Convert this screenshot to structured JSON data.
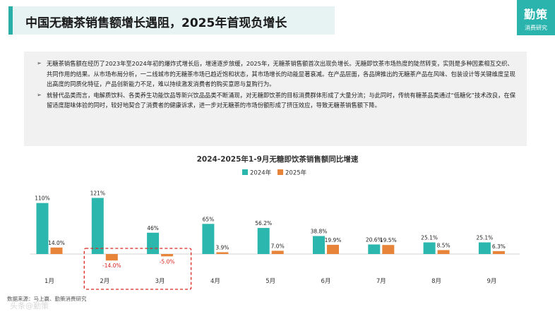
{
  "header": {
    "title": "中国无糖茶销售额增长遇阻，2025年首现负增长"
  },
  "logo": {
    "main": "勤策",
    "sub": "消费研究"
  },
  "paragraphs": [
    "无糖茶销售额在经历了2023年至2024年初的爆炸式增长后，增速逐步放缓，2025年，无糖茶销售额首次出现负增长。无糖即饮茶市场热度的陡然转变，实则是多种因素相互交织、共同作用的结果。从市场布局分析，一二线城市的无糖茶市场已趋近饱和状态，其市场增长的动能显著衰减。在产品层面，各品牌推出的无糖茶产品在风味、包装设计等关键维度呈现出高度的同质化特征，产品创新能力不足，难以持续激发消费者的购买意愿与复购行为。",
    "就替代品类而言，电解质饮料、各类养生功能饮品等新兴饮品品类不断涌现，对无糖即饮茶的目标消费群体形成了大量分流；与此同时，传统有糖茶品类通过“低糖化”技术改良，在保留适度甜味体验的同时，较好地契合了消费者的健康诉求，进一步对无糖茶的市场份额形成了挤压效应，导致无糖茶销售额下降。"
  ],
  "chart_data": {
    "type": "bar",
    "title": "2024-2025年1-9月无糖即饮茶销售额同比增速",
    "categories": [
      "1月",
      "2月",
      "3月",
      "4月",
      "5月",
      "6月",
      "7月",
      "8月",
      "9月"
    ],
    "series": [
      {
        "name": "2024年",
        "color": "#2bb7ad",
        "values": [
          110,
          121,
          46,
          65,
          56.2,
          38.8,
          20.6,
          25.1,
          25.1
        ],
        "labels": [
          "110%",
          "121%",
          "46%",
          "65%",
          "56.2%",
          "38.8%",
          "20.6%",
          "25.1%",
          "25.1%"
        ]
      },
      {
        "name": "2025年",
        "color": "#e8843a",
        "values": [
          14.0,
          -14.0,
          -5.0,
          3.9,
          7.0,
          19.9,
          19.5,
          8.5,
          6.3
        ],
        "labels": [
          "14.0%",
          "-14.0%",
          "-5.0%",
          "3.9%",
          "7.0%",
          "19.9%",
          "19.5%",
          "8.5%",
          "6.3%"
        ]
      }
    ],
    "negative_label_color": "#d9251d",
    "highlight_box": {
      "categories": [
        "2月",
        "3月"
      ],
      "color": "#d9251d",
      "style": "dashed"
    },
    "legend_position": "top-center",
    "grid": false,
    "ylim": [
      -14,
      121
    ],
    "y_axis_visible": false
  },
  "source": "数据来源：马上赢、勤策消费研究",
  "watermark": "头条@勤策"
}
